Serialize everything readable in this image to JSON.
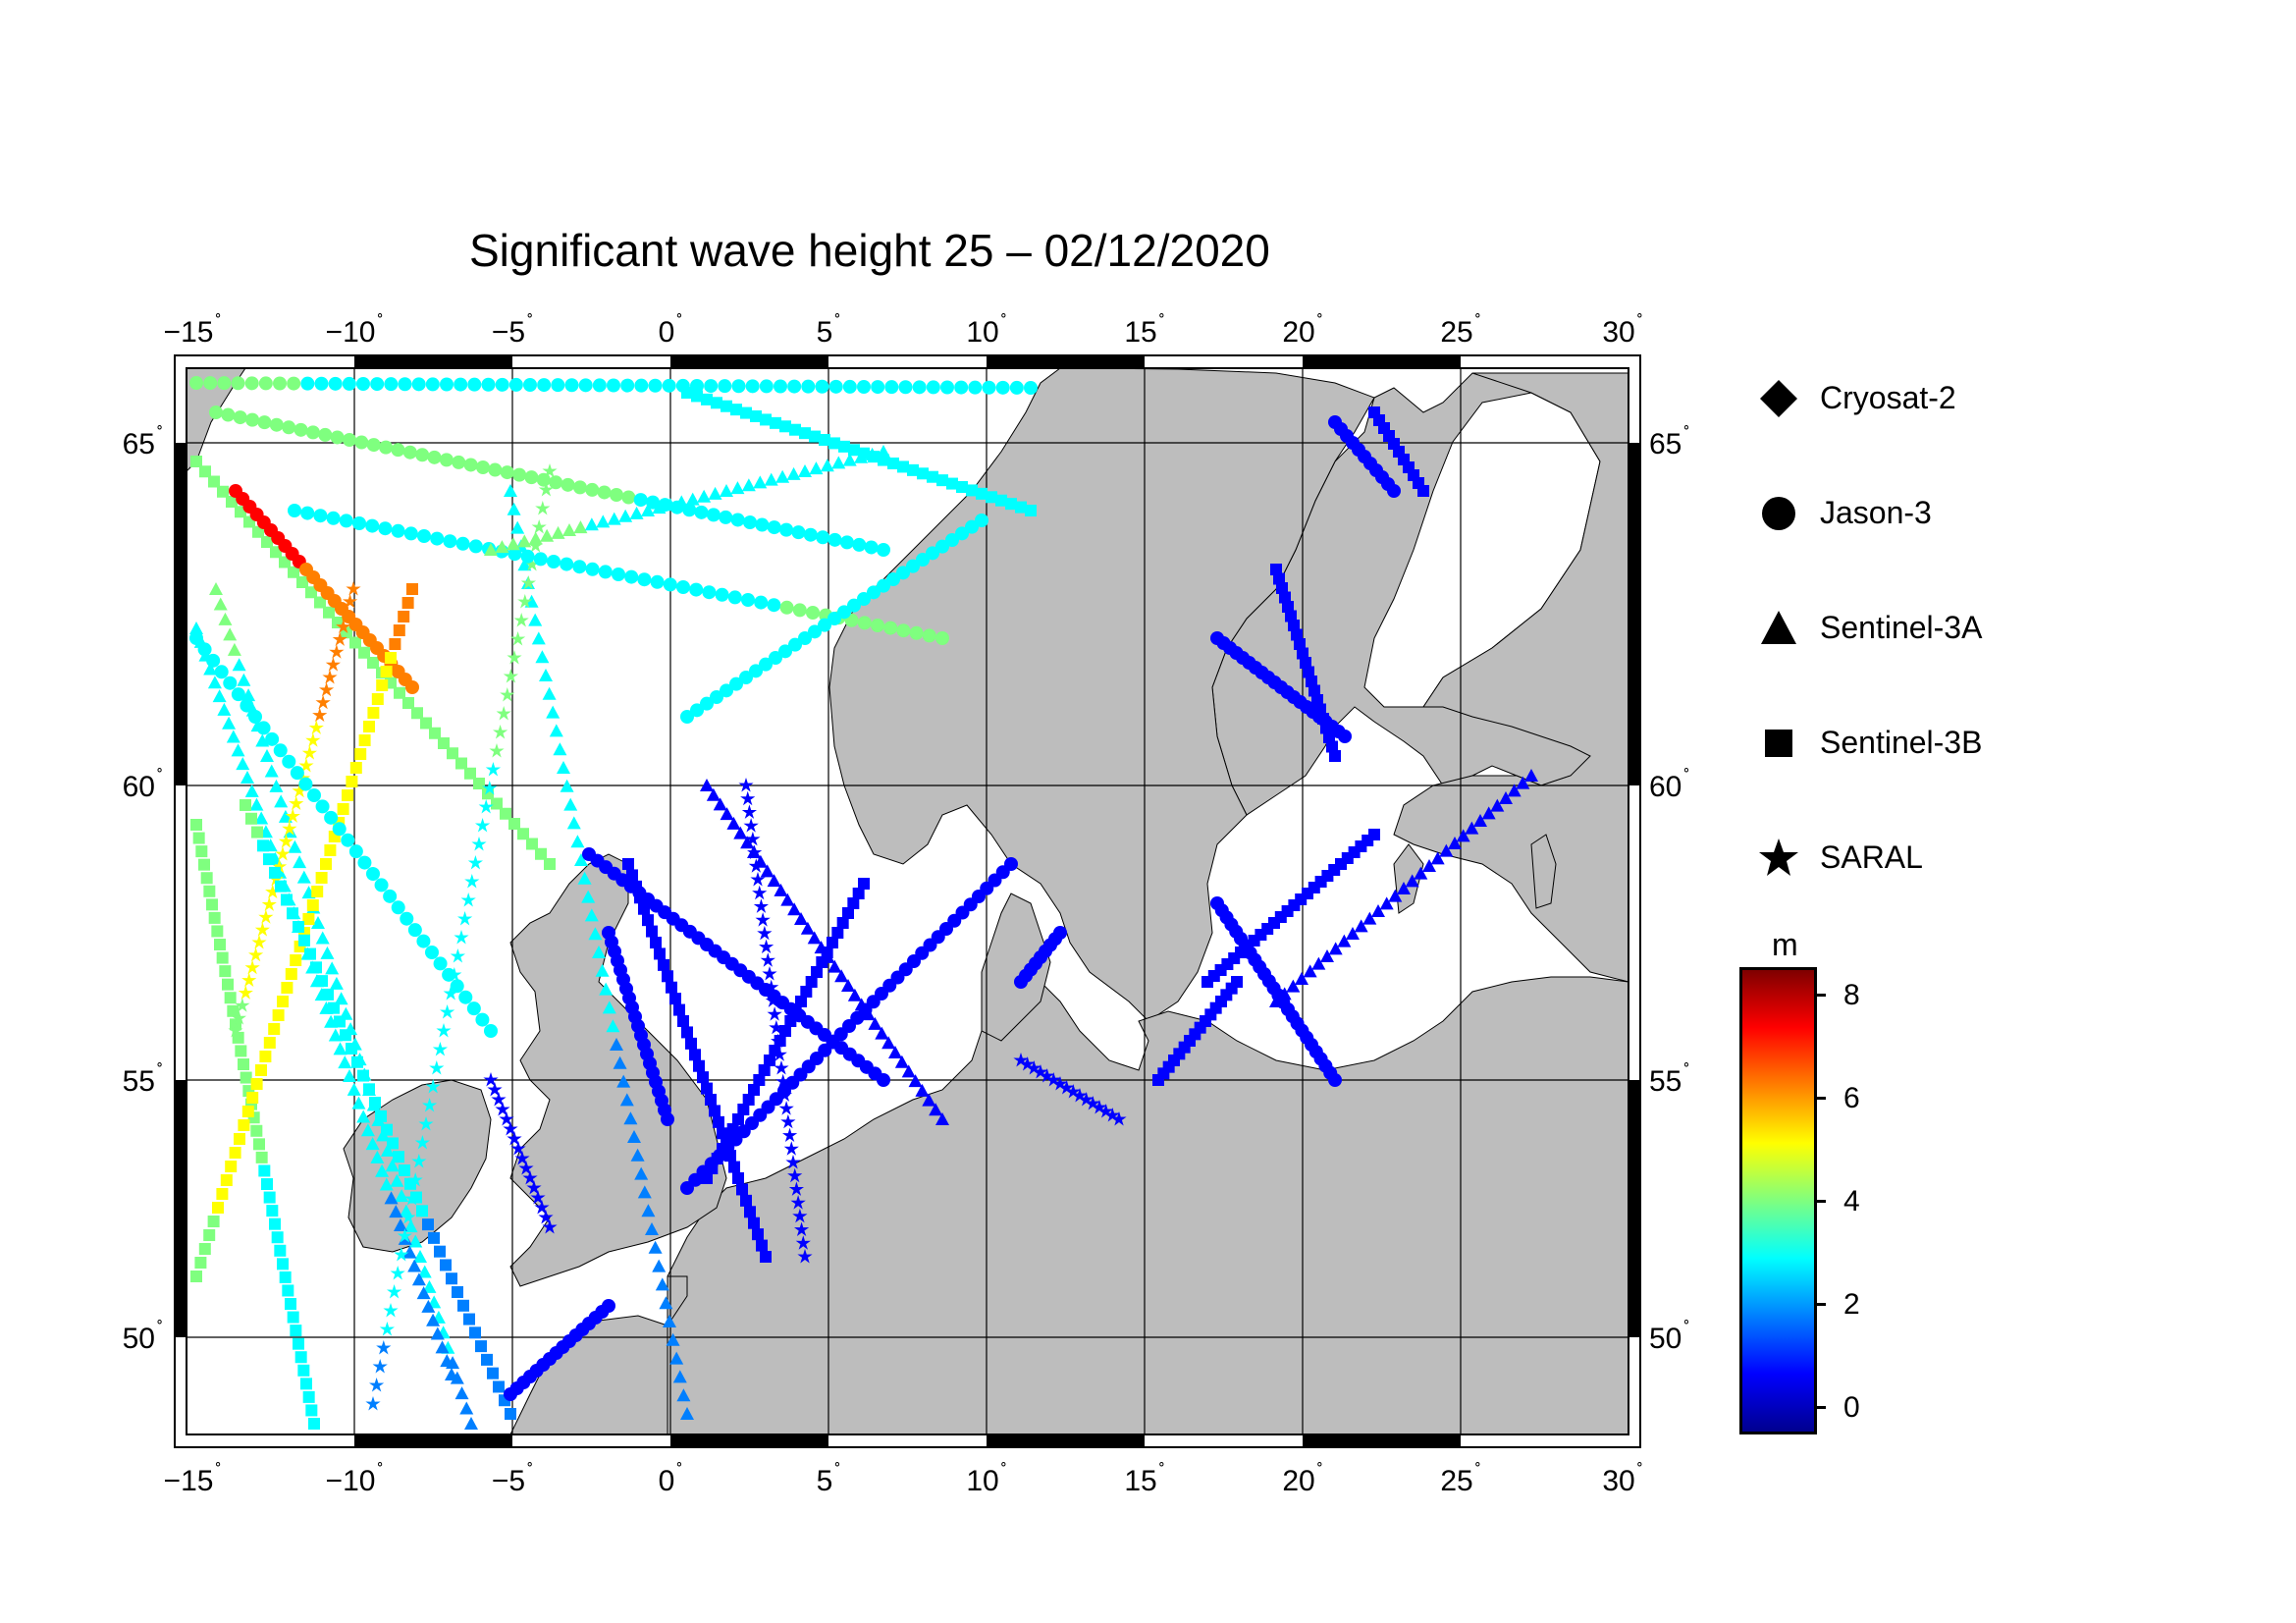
{
  "title": "Significant wave height 25 – 02/12/2020",
  "axes": {
    "lon_ticks": [
      "−15",
      "−10",
      "−5",
      "0",
      "5",
      "10",
      "15",
      "20",
      "25",
      "30"
    ],
    "lat_ticks": [
      "65",
      "60",
      "55",
      "50"
    ],
    "degree_symbol": "˚"
  },
  "legend": [
    {
      "label": "Cryosat-2",
      "symbol": "diamond-icon"
    },
    {
      "label": "Jason-3",
      "symbol": "circle-icon"
    },
    {
      "label": "Sentinel-3A",
      "symbol": "triangle-icon"
    },
    {
      "label": "Sentinel-3B",
      "symbol": "square-icon"
    },
    {
      "label": "SARAL",
      "symbol": "star-icon"
    }
  ],
  "colorbar": {
    "unit": "m",
    "ticks": [
      "8",
      "6",
      "4",
      "2",
      "0"
    ],
    "colors": [
      "#00008f",
      "#0000ff",
      "#007fff",
      "#00ffff",
      "#7fff7f",
      "#ffff00",
      "#ff7f00",
      "#ff0000",
      "#7f0000"
    ],
    "range": [
      -0.5,
      8.7
    ]
  },
  "colors": {
    "land": "#bdbdbd",
    "sea": "#ffffff",
    "frame": "#000000"
  }
}
